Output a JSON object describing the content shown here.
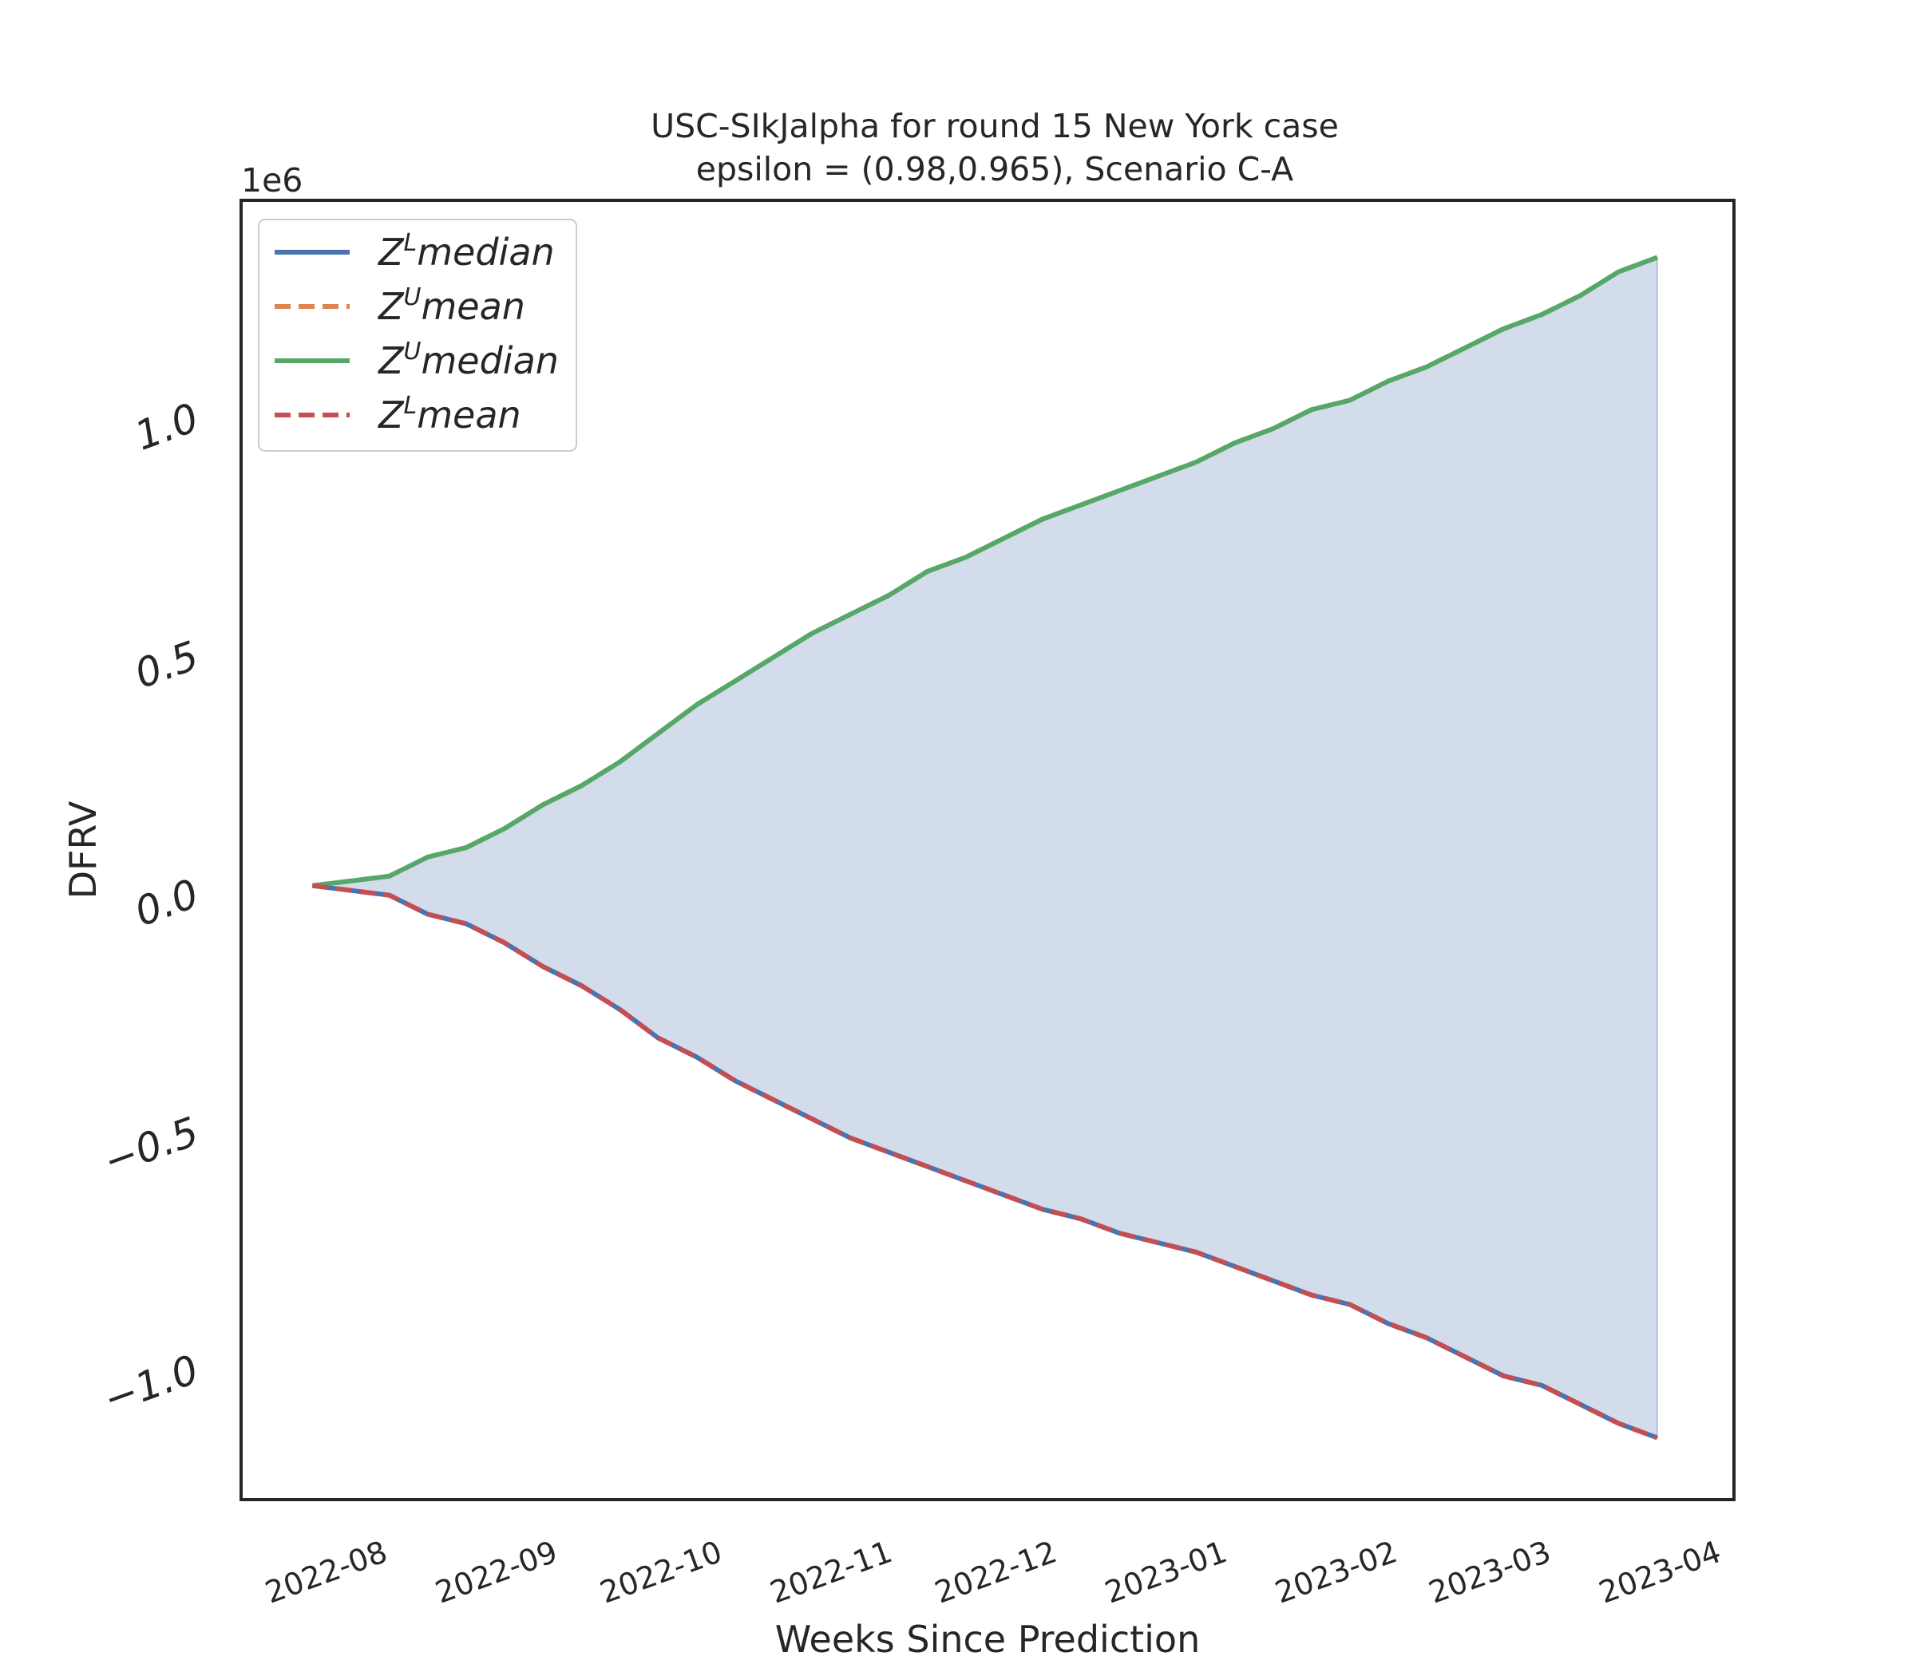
{
  "chart_data": {
    "type": "line",
    "title_line1": "USC-SIkJalpha for round 15 New York  case",
    "title_line2": "epsilon = (0.98,0.965), Scenario C-A",
    "xlabel": "Weeks Since Prediction",
    "ylabel": "DFRV",
    "y_offset_text": "1e6",
    "ylim": [
      -1.28,
      1.45
    ],
    "xlim": [
      "2022-07-05",
      "2023-04-03"
    ],
    "x_ticks": [
      "2022-08",
      "2022-09",
      "2022-10",
      "2022-11",
      "2022-12",
      "2023-01",
      "2023-02",
      "2023-03",
      "2023-04"
    ],
    "y_ticks": [
      {
        "value": -1.0,
        "label": "−1.0"
      },
      {
        "value": -0.5,
        "label": "−0.5"
      },
      {
        "value": 0.0,
        "label": "0.0"
      },
      {
        "value": 0.5,
        "label": "0.5"
      },
      {
        "value": 1.0,
        "label": "1.0"
      }
    ],
    "x": [
      "2022-07-18",
      "2022-07-25",
      "2022-08-01",
      "2022-08-08",
      "2022-08-15",
      "2022-08-22",
      "2022-08-29",
      "2022-09-05",
      "2022-09-12",
      "2022-09-19",
      "2022-09-26",
      "2022-10-03",
      "2022-10-10",
      "2022-10-17",
      "2022-10-24",
      "2022-10-31",
      "2022-11-07",
      "2022-11-14",
      "2022-11-21",
      "2022-11-28",
      "2022-12-05",
      "2022-12-12",
      "2022-12-19",
      "2022-12-26",
      "2023-01-02",
      "2023-01-09",
      "2023-01-16",
      "2023-01-23",
      "2023-01-30",
      "2023-02-06",
      "2023-02-13",
      "2023-02-20",
      "2023-02-27",
      "2023-03-06",
      "2023-03-13",
      "2023-03-20"
    ],
    "upper": [
      0.01,
      0.02,
      0.03,
      0.07,
      0.09,
      0.13,
      0.18,
      0.22,
      0.27,
      0.33,
      0.39,
      0.44,
      0.49,
      0.54,
      0.58,
      0.62,
      0.67,
      0.7,
      0.74,
      0.78,
      0.81,
      0.84,
      0.87,
      0.9,
      0.94,
      0.97,
      1.01,
      1.03,
      1.07,
      1.1,
      1.14,
      1.18,
      1.21,
      1.25,
      1.3,
      1.33
    ],
    "lower": [
      0.01,
      0.0,
      -0.01,
      -0.05,
      -0.07,
      -0.11,
      -0.16,
      -0.2,
      -0.25,
      -0.31,
      -0.35,
      -0.4,
      -0.44,
      -0.48,
      -0.52,
      -0.55,
      -0.58,
      -0.61,
      -0.64,
      -0.67,
      -0.69,
      -0.72,
      -0.74,
      -0.76,
      -0.79,
      -0.82,
      -0.85,
      -0.87,
      -0.91,
      -0.94,
      -0.98,
      -1.02,
      -1.04,
      -1.08,
      -1.12,
      -1.15
    ],
    "legend_placement": "upper left",
    "grid": false,
    "fill_color": "#4c72b0",
    "series": [
      {
        "name_base": "Z",
        "name_sup": "L",
        "name_rest": "median",
        "data": "lower",
        "color": "#4c72b0",
        "dash": "solid"
      },
      {
        "name_base": "Z",
        "name_sup": "U",
        "name_rest": "mean",
        "data": "upper",
        "color": "#dd8452",
        "dash": "dashed"
      },
      {
        "name_base": "Z",
        "name_sup": "U",
        "name_rest": "median",
        "data": "upper",
        "color": "#55a868",
        "dash": "solid"
      },
      {
        "name_base": "Z",
        "name_sup": "L",
        "name_rest": "mean",
        "data": "lower",
        "color": "#c44e52",
        "dash": "dashed"
      }
    ]
  }
}
